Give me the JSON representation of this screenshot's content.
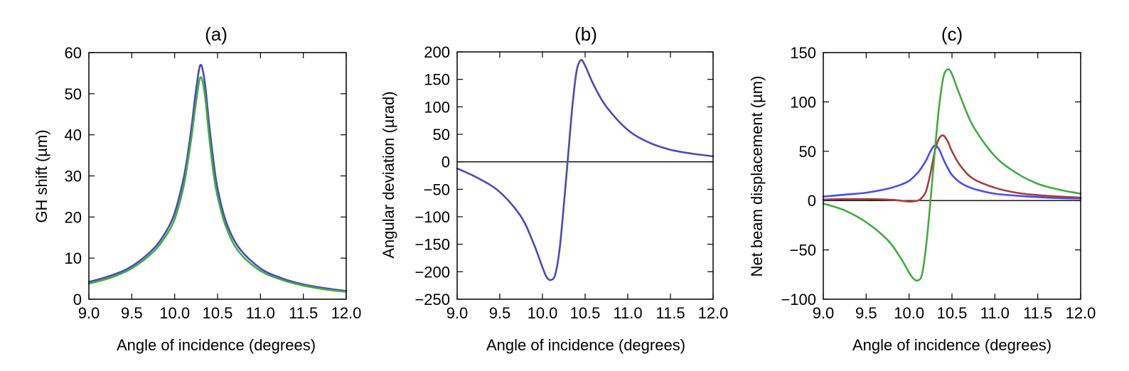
{
  "chart_data": [
    {
      "type": "line",
      "title": "(a)",
      "xlabel": "Angle of incidence (degrees)",
      "ylabel": "GH shift (µm)",
      "xlim": [
        9.0,
        12.0
      ],
      "ylim": [
        0,
        60
      ],
      "xticks": [
        "9.0",
        "9.5",
        "10.0",
        "10.5",
        "11.0",
        "11.5",
        "12.0"
      ],
      "yticks": [
        "0",
        "10",
        "20",
        "30",
        "40",
        "50",
        "60"
      ],
      "zero_line": false,
      "series": [
        {
          "color": "#4b4bb4",
          "x": [
            9.0,
            9.25,
            9.5,
            9.75,
            9.9,
            10.0,
            10.1,
            10.15,
            10.2,
            10.25,
            10.3,
            10.35,
            10.4,
            10.45,
            10.5,
            10.6,
            10.75,
            11.0,
            11.25,
            11.5,
            11.75,
            12.0
          ],
          "y": [
            4.2,
            5.7,
            8.0,
            12.2,
            16.5,
            21.0,
            29.0,
            35.0,
            42.5,
            51.0,
            57.0,
            53.0,
            43.0,
            34.0,
            27.0,
            18.8,
            12.5,
            7.5,
            5.1,
            3.6,
            2.7,
            2.0
          ]
        },
        {
          "color": "#44aa44",
          "x": [
            9.0,
            9.25,
            9.5,
            9.75,
            9.9,
            10.0,
            10.1,
            10.15,
            10.2,
            10.25,
            10.3,
            10.35,
            10.4,
            10.45,
            10.5,
            10.6,
            10.75,
            11.0,
            11.25,
            11.5,
            11.75,
            12.0
          ],
          "y": [
            3.8,
            5.2,
            7.5,
            11.5,
            15.5,
            19.5,
            27.0,
            33.0,
            40.0,
            48.0,
            54.0,
            50.0,
            40.0,
            31.0,
            25.0,
            17.5,
            11.5,
            6.9,
            4.7,
            3.3,
            2.4,
            1.8
          ]
        }
      ]
    },
    {
      "type": "line",
      "title": "(b)",
      "xlabel": "Angle of incidence (degrees)",
      "ylabel": "Angular deviation (µrad)",
      "xlim": [
        9.0,
        12.0
      ],
      "ylim": [
        -250,
        200
      ],
      "xticks": [
        "9.0",
        "9.5",
        "10.0",
        "10.5",
        "11.0",
        "11.5",
        "12.0"
      ],
      "yticks": [
        "200",
        "150",
        "100",
        "50",
        "0",
        "−50",
        "−100",
        "−150",
        "−200",
        "−250"
      ],
      "zero_line": true,
      "series": [
        {
          "color": "#4b4bb4",
          "x": [
            9.0,
            9.25,
            9.5,
            9.75,
            9.9,
            10.0,
            10.05,
            10.1,
            10.15,
            10.2,
            10.25,
            10.3,
            10.35,
            10.4,
            10.45,
            10.5,
            10.6,
            10.75,
            11.0,
            11.25,
            11.5,
            11.75,
            12.0
          ],
          "y": [
            -12,
            -30,
            -55,
            -100,
            -150,
            -192,
            -210,
            -215,
            -205,
            -160,
            -80,
            10,
            100,
            165,
            185,
            175,
            140,
            100,
            58,
            35,
            22,
            15,
            10
          ]
        }
      ]
    },
    {
      "type": "line",
      "title": "(c)",
      "xlabel": "Angle of incidence (degrees)",
      "ylabel": "Net beam displacement (µm)",
      "xlim": [
        9.0,
        12.0
      ],
      "ylim": [
        -100,
        150
      ],
      "xticks": [
        "9.0",
        "9.5",
        "10.0",
        "10.5",
        "11.0",
        "11.5",
        "12.0"
      ],
      "yticks": [
        "150",
        "100",
        "50",
        "0",
        "−50",
        "−100"
      ],
      "zero_line": true,
      "series": [
        {
          "color": "#4b4bee",
          "x": [
            9.0,
            9.25,
            9.5,
            9.75,
            9.9,
            10.0,
            10.1,
            10.15,
            10.2,
            10.25,
            10.3,
            10.35,
            10.4,
            10.45,
            10.5,
            10.6,
            10.75,
            11.0,
            11.25,
            11.5,
            11.75,
            12.0
          ],
          "y": [
            4,
            6,
            8,
            12,
            16,
            20,
            28,
            34,
            41,
            50,
            56,
            52,
            42,
            33,
            26,
            18,
            12,
            7,
            5,
            3.5,
            2.5,
            2
          ]
        },
        {
          "color": "#a04040",
          "x": [
            9.0,
            9.25,
            9.5,
            9.75,
            9.9,
            10.0,
            10.1,
            10.15,
            10.2,
            10.25,
            10.3,
            10.35,
            10.4,
            10.45,
            10.5,
            10.6,
            10.75,
            11.0,
            11.25,
            11.5,
            11.75,
            12.0
          ],
          "y": [
            1,
            1.5,
            1.5,
            1,
            0,
            -1,
            0,
            3,
            10,
            28,
            50,
            63,
            66,
            60,
            50,
            35,
            22,
            13,
            8,
            5.5,
            4,
            3
          ]
        },
        {
          "color": "#44aa44",
          "x": [
            9.0,
            9.25,
            9.5,
            9.75,
            9.9,
            10.0,
            10.05,
            10.1,
            10.15,
            10.2,
            10.25,
            10.3,
            10.35,
            10.4,
            10.45,
            10.5,
            10.6,
            10.75,
            11.0,
            11.25,
            11.5,
            11.75,
            12.0
          ],
          "y": [
            -3,
            -10,
            -22,
            -40,
            -58,
            -73,
            -79,
            -81,
            -75,
            -45,
            0,
            50,
            95,
            125,
            133,
            128,
            105,
            75,
            45,
            28,
            17,
            11,
            7
          ]
        }
      ]
    }
  ]
}
